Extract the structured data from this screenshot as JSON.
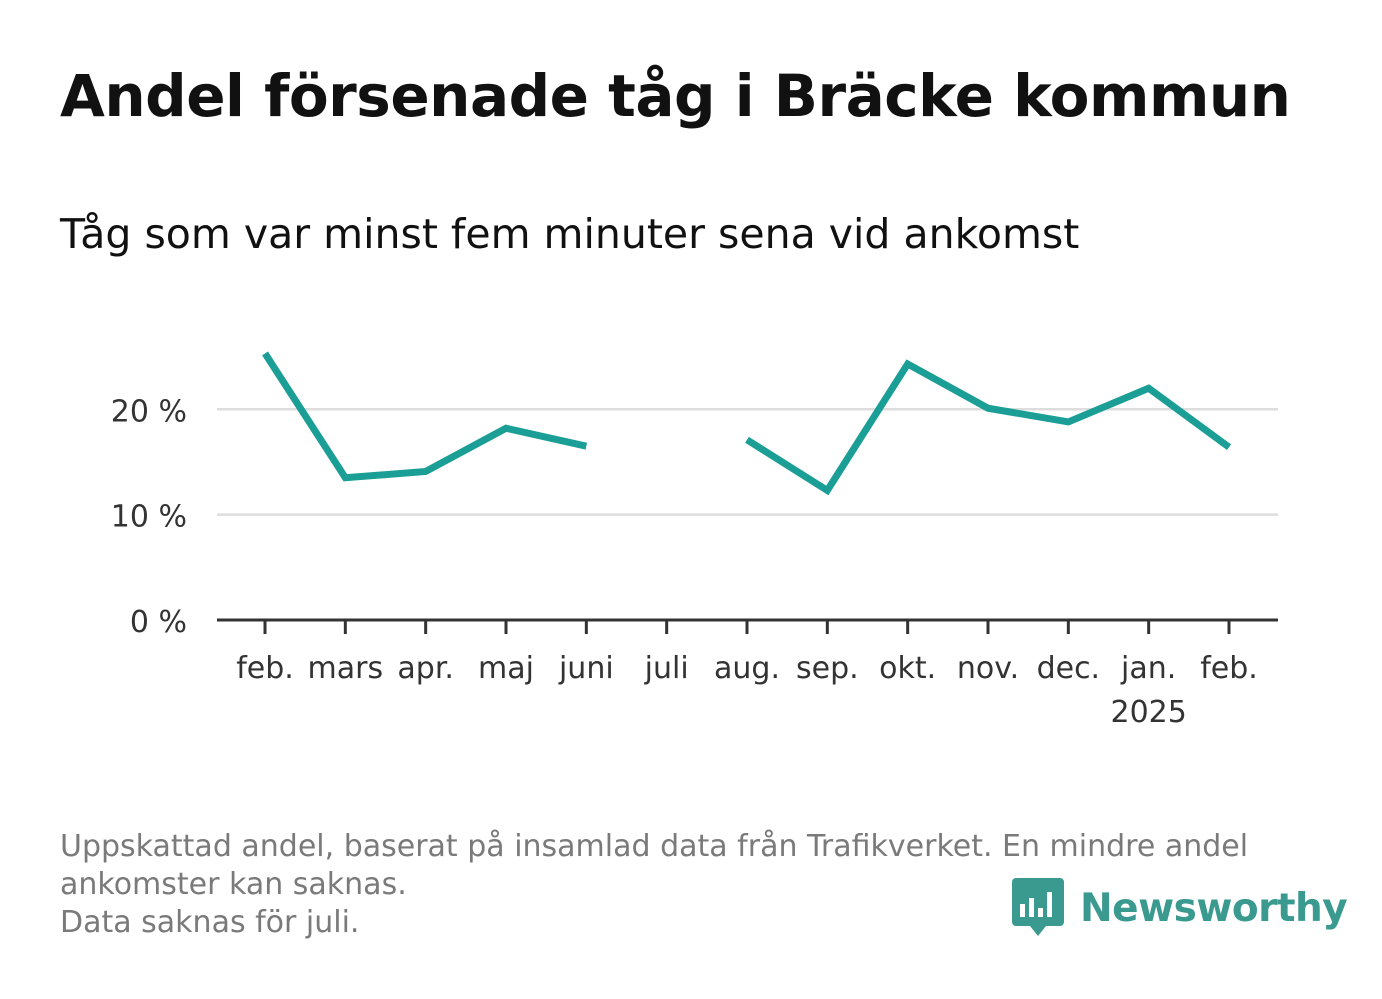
{
  "title": "Andel försenade tåg i Bräcke kommun",
  "subtitle": "Tåg som var minst fem minuter sena vid ankomst",
  "footnote": {
    "line1": "Uppskattad andel, baserat på insamlad data från Trafikverket. En mindre andel",
    "line2": "ankomster kan saknas.",
    "line3": "Data saknas för juli."
  },
  "brand": {
    "name": "Newsworthy",
    "color": "#3a9a8f",
    "icon": "newsworthy-logo-icon"
  },
  "colors": {
    "line": "#1a9e96",
    "grid": "#dddddd",
    "axis": "#333333",
    "tick_label": "#333333"
  },
  "chart_data": {
    "type": "line",
    "title": "Andel försenade tåg i Bräcke kommun",
    "subtitle": "Tåg som var minst fem minuter sena vid ankomst",
    "categories": [
      "feb.",
      "mars",
      "apr.",
      "maj",
      "juni",
      "juli",
      "aug.",
      "sep.",
      "okt.",
      "nov.",
      "dec.",
      "jan.",
      "feb."
    ],
    "year_labels": {
      "11": "2025"
    },
    "series": [
      {
        "values": [
          25.3,
          13.5,
          14.1,
          18.2,
          16.5,
          null,
          17.1,
          12.3,
          24.3,
          20.1,
          18.8,
          22.0,
          16.4
        ]
      }
    ],
    "ylim": [
      0,
      28
    ],
    "yticks": [
      0,
      10,
      20
    ],
    "ytick_labels": [
      "0 %",
      "10 %",
      "20 %"
    ],
    "grid": true,
    "legend": "none",
    "xlabel": "",
    "ylabel": ""
  }
}
